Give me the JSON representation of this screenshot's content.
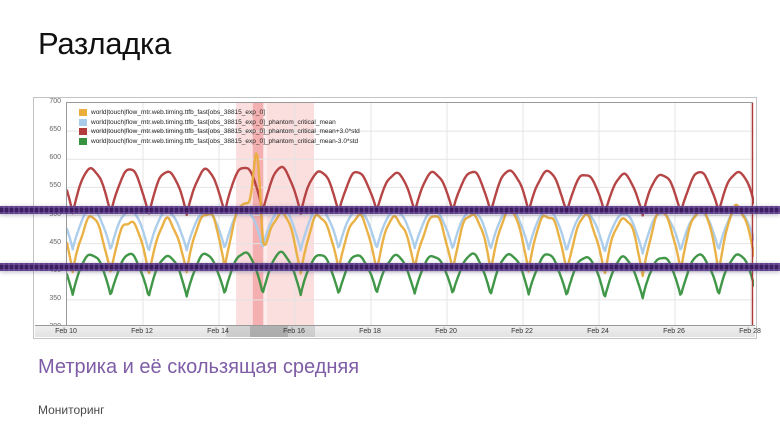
{
  "slide": {
    "title": "Разладка",
    "subtitle": "Метрика и её скользящая средняя",
    "footer": "Мониторинг"
  },
  "colors": {
    "subtitle_text": "#7E5DA6",
    "threshold_band": "#321358",
    "anomaly_window_fill": "#F8C9C9",
    "anomaly_core_fill": "#F19C9C",
    "grid_line": "#e4e4e4",
    "cursor_line": "#B03A3A"
  },
  "chart_data": {
    "type": "line",
    "title": "",
    "xlabel": "",
    "ylabel": "",
    "x_axis": {
      "tick_labels": [
        "Feb 10",
        "Feb 12",
        "Feb 14",
        "Feb 16",
        "Feb 18",
        "Feb 20",
        "Feb 22",
        "Feb 24",
        "Feb 26",
        "Feb 28"
      ],
      "days_shown": 18.1,
      "grid": true
    },
    "y_axis": {
      "min": 300,
      "max": 700,
      "tick_step": 50,
      "ticks": [
        700,
        650,
        600,
        550,
        500,
        450,
        400,
        350,
        300
      ],
      "grid": true
    },
    "legend_position": "top-left",
    "series": [
      {
        "name": "world|touch|flow_mtr.web.timing.ttfb_fast[obs_38815_exp_0]",
        "color": "#E9AE3C",
        "wiggle": 7,
        "seed": 1.3,
        "daily_high": [
          497,
          494,
          491,
          489,
          515,
          520,
          497,
          500,
          498,
          496,
          499,
          507,
          509,
          500,
          496,
          497,
          509,
          514,
          515
        ],
        "daily_low": [
          400,
          396,
          394,
          398,
          406,
          409,
          398,
          400,
          402,
          404,
          402,
          400,
          401,
          398,
          394,
          392,
          398,
          400,
          402
        ],
        "anomaly": {
          "day": 5.0,
          "amp": 145,
          "sigma": 0.1,
          "peak_value": 646
        }
      },
      {
        "name": "world|touch|flow_mtr.web.timing.ttfb_fast[obs_38815_exp_0]_phantom_critical_mean",
        "color": "#A9CBEA",
        "wiggle": 2,
        "seed": 2.1,
        "daily_high": [
          513,
          511,
          509,
          506,
          510,
          515,
          511,
          512,
          510,
          508,
          509,
          511,
          512,
          508,
          505,
          503,
          506,
          508,
          509
        ],
        "daily_low": [
          440,
          438,
          436,
          437,
          441,
          443,
          438,
          440,
          441,
          442,
          440,
          439,
          440,
          437,
          434,
          432,
          436,
          438,
          440
        ]
      },
      {
        "name": "world|touch|flow_mtr.web.timing.ttfb_fast[obs_38815_exp_0]_phantom_critical_mean+3.0*std",
        "color": "#B23B3C",
        "wiggle": 3,
        "seed": 3.7,
        "daily_high": [
          585,
          583,
          581,
          578,
          582,
          590,
          581,
          578,
          576,
          575,
          577,
          578,
          581,
          576,
          573,
          571,
          575,
          577,
          578
        ],
        "daily_low": [
          505,
          502,
          500,
          501,
          503,
          506,
          503,
          505,
          506,
          507,
          506,
          505,
          506,
          504,
          502,
          500,
          503,
          505,
          506
        ]
      },
      {
        "name": "world|touch|flow_mtr.web.timing.ttfb_fast[obs_38815_exp_0]_phantom_critical_mean-3.0*std",
        "color": "#37913E",
        "wiggle": 3,
        "seed": 4.4,
        "daily_high": [
          433,
          431,
          430,
          428,
          432,
          436,
          432,
          430,
          429,
          428,
          429,
          431,
          432,
          429,
          426,
          424,
          428,
          430,
          431
        ],
        "daily_low": [
          360,
          357,
          355,
          356,
          359,
          362,
          358,
          360,
          361,
          362,
          360,
          359,
          360,
          357,
          354,
          352,
          356,
          358,
          360
        ]
      }
    ],
    "threshold_lines": [
      {
        "value": 507
      },
      {
        "value": 407
      }
    ],
    "anomaly_highlight": {
      "window_days": [
        4.45,
        6.5
      ],
      "core_days": [
        4.89,
        5.16
      ],
      "axis_shade_days": [
        4.2,
        6.55
      ],
      "axis_core_days": [
        4.85,
        5.85
      ]
    }
  }
}
